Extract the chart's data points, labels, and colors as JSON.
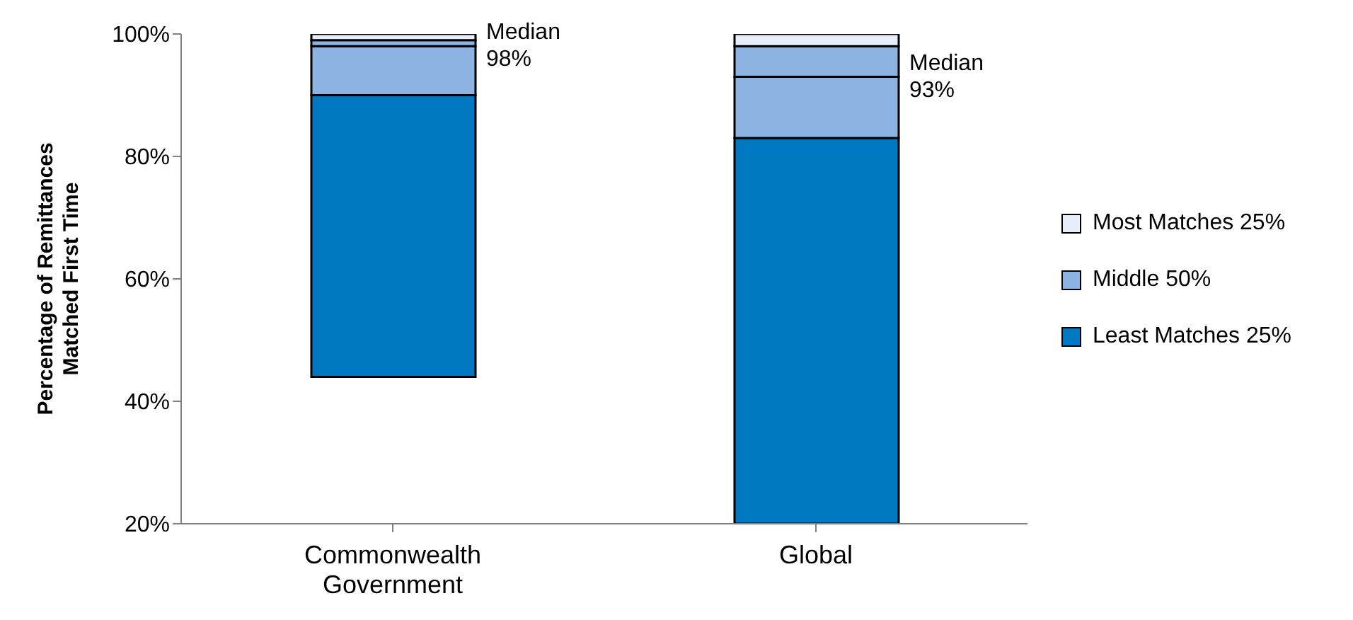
{
  "chart_data": {
    "type": "bar",
    "ylabel": "Percentage of Remittances\nMatched First Time",
    "categories": [
      "Commonwealth\nGovernment",
      "Global"
    ],
    "series": [
      {
        "name": "Least Matches 25%",
        "color": "#0079c2",
        "base": [
          44,
          20
        ],
        "values": [
          46,
          63
        ]
      },
      {
        "name": "Middle 50%",
        "color": "#8db3e2",
        "base": [
          90,
          83
        ],
        "values": [
          8,
          10
        ]
      },
      {
        "color": "#8db3e2",
        "base": [
          98,
          93
        ],
        "values": [
          1,
          5
        ]
      },
      {
        "name": "Most Matches 25%",
        "color": "#e6eef9",
        "base": [
          99,
          98
        ],
        "values": [
          1,
          2
        ]
      }
    ],
    "ylim": [
      20,
      100
    ],
    "yticks": [
      {
        "value": 20,
        "label": "20%"
      },
      {
        "value": 40,
        "label": "40%"
      },
      {
        "value": 60,
        "label": "60%"
      },
      {
        "value": 80,
        "label": "80%"
      },
      {
        "value": 100,
        "label": "100%"
      }
    ],
    "grid": false,
    "legend": "right",
    "annotations": [
      "Median\n98%",
      "Median\n93%"
    ]
  }
}
